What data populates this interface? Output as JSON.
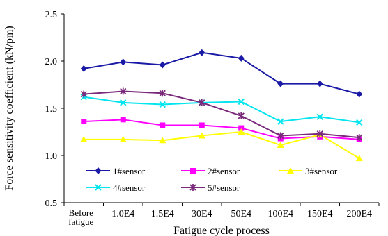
{
  "chart_data": {
    "type": "line",
    "title": "",
    "xlabel": "Fatigue cycle process",
    "ylabel": "Force sensitivity coefficient (kN/pm)",
    "categories": [
      {
        "line1": "Before",
        "line2": "fatigue"
      },
      {
        "line1": "1.0E4",
        "line2": ""
      },
      {
        "line1": "1.5E4",
        "line2": ""
      },
      {
        "line1": "30E4",
        "line2": ""
      },
      {
        "line1": "50E4",
        "line2": ""
      },
      {
        "line1": "100E4",
        "line2": ""
      },
      {
        "line1": "150E4",
        "line2": ""
      },
      {
        "line1": "200E4",
        "line2": ""
      }
    ],
    "ylim": [
      0.5,
      2.5
    ],
    "yticks": [
      "0.5",
      "1.0",
      "1.5",
      "2.0",
      "2.5"
    ],
    "grid": false,
    "legend_position": "bottom-inside",
    "series": [
      {
        "name": "1#sensor",
        "color": "#1a1aa6",
        "marker": "diamond",
        "values": [
          1.92,
          1.99,
          1.96,
          2.09,
          2.03,
          1.76,
          1.76,
          1.65
        ]
      },
      {
        "name": "2#sensor",
        "color": "#ff00ff",
        "marker": "square",
        "values": [
          1.36,
          1.38,
          1.32,
          1.32,
          1.29,
          1.18,
          1.2,
          1.17
        ]
      },
      {
        "name": "3#sensor",
        "color": "#ffff00",
        "marker": "triangle",
        "values": [
          1.17,
          1.17,
          1.16,
          1.21,
          1.25,
          1.11,
          1.22,
          0.97
        ]
      },
      {
        "name": "4#sensor",
        "color": "#00e5ee",
        "marker": "x",
        "values": [
          1.62,
          1.56,
          1.54,
          1.56,
          1.57,
          1.36,
          1.41,
          1.35
        ]
      },
      {
        "name": "5#sensor",
        "color": "#7a2a7a",
        "marker": "star",
        "values": [
          1.65,
          1.68,
          1.66,
          1.56,
          1.42,
          1.21,
          1.23,
          1.19
        ]
      }
    ]
  }
}
